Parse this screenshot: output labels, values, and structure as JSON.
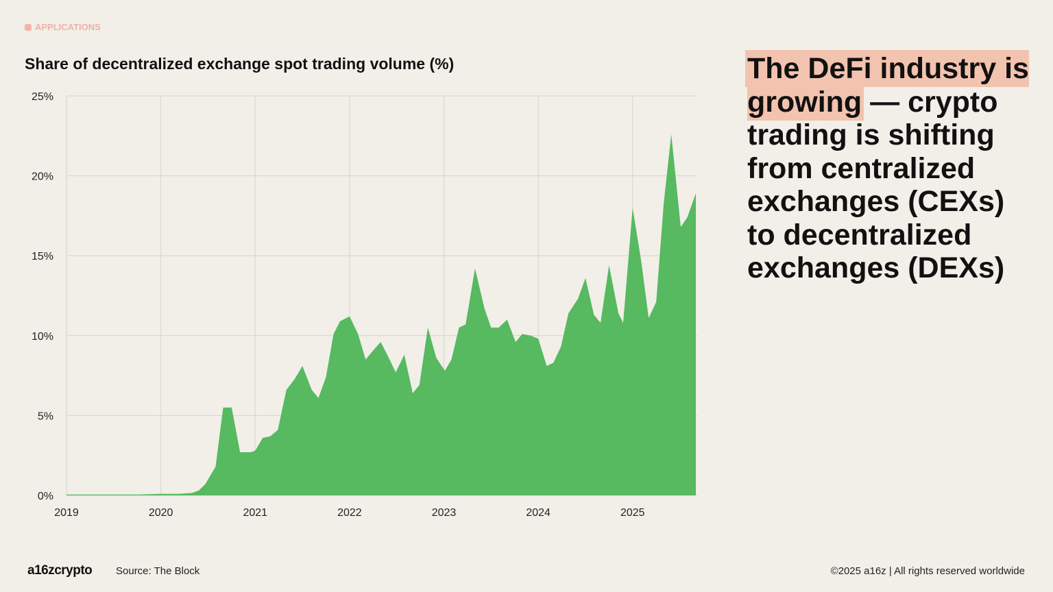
{
  "section_tag": "APPLICATIONS",
  "headline": {
    "highlighted": "The DeFi industry is growing",
    "rest": " — crypto trading is shifting from centralized exchanges (CEXs) to decentralized exchanges (DEXs)"
  },
  "footer": {
    "logo": "a16zcrypto",
    "source": "Source: The Block",
    "copyright": "©2025 a16z | All rights reserved worldwide"
  },
  "colors": {
    "area": "#57b960",
    "highlight": "#f2c3ae",
    "tag": "#eeb2a2",
    "background": "#f1efe8"
  },
  "chart_data": {
    "type": "area",
    "title": "Share of decentralized exchange spot trading volume (%)",
    "xlabel": "",
    "ylabel": "",
    "xlim": [
      2019,
      2025.67
    ],
    "ylim": [
      0,
      25
    ],
    "grid": true,
    "x_ticks": [
      "2019",
      "2020",
      "2021",
      "2022",
      "2023",
      "2024",
      "2025"
    ],
    "y_ticks": [
      "0%",
      "5%",
      "10%",
      "15%",
      "20%",
      "25%"
    ],
    "x": [
      2019.0,
      2019.31,
      2019.75,
      2020.0,
      2020.18,
      2020.33,
      2020.4,
      2020.47,
      2020.58,
      2020.66,
      2020.75,
      2020.84,
      2020.95,
      2021.0,
      2021.08,
      2021.16,
      2021.24,
      2021.33,
      2021.42,
      2021.5,
      2021.6,
      2021.67,
      2021.75,
      2021.83,
      2021.9,
      2022.0,
      2022.09,
      2022.17,
      2022.24,
      2022.33,
      2022.4,
      2022.49,
      2022.58,
      2022.67,
      2022.74,
      2022.83,
      2022.92,
      2023.01,
      2023.08,
      2023.16,
      2023.23,
      2023.33,
      2023.43,
      2023.5,
      2023.58,
      2023.67,
      2023.76,
      2023.83,
      2023.92,
      2024.0,
      2024.09,
      2024.16,
      2024.24,
      2024.32,
      2024.42,
      2024.5,
      2024.59,
      2024.66,
      2024.75,
      2024.85,
      2024.9,
      2025.0,
      2025.09,
      2025.17,
      2025.25,
      2025.33,
      2025.41,
      2025.51,
      2025.58,
      2025.67
    ],
    "values": [
      0.05,
      0.05,
      0.05,
      0.1,
      0.1,
      0.15,
      0.3,
      0.7,
      1.8,
      5.5,
      5.5,
      2.7,
      2.7,
      2.8,
      3.6,
      3.7,
      4.1,
      6.6,
      7.3,
      8.1,
      6.6,
      6.1,
      7.4,
      10.1,
      10.9,
      11.2,
      10.1,
      8.5,
      9.0,
      9.6,
      8.8,
      7.7,
      8.8,
      6.4,
      6.9,
      10.5,
      8.6,
      7.8,
      8.5,
      10.5,
      10.7,
      14.2,
      11.7,
      10.5,
      10.5,
      11.0,
      9.6,
      10.1,
      10.0,
      9.8,
      8.1,
      8.3,
      9.3,
      11.4,
      12.3,
      13.6,
      11.3,
      10.8,
      14.4,
      11.4,
      10.8,
      18.0,
      14.7,
      11.1,
      12.1,
      18.3,
      22.6,
      16.8,
      17.4,
      18.9
    ]
  }
}
